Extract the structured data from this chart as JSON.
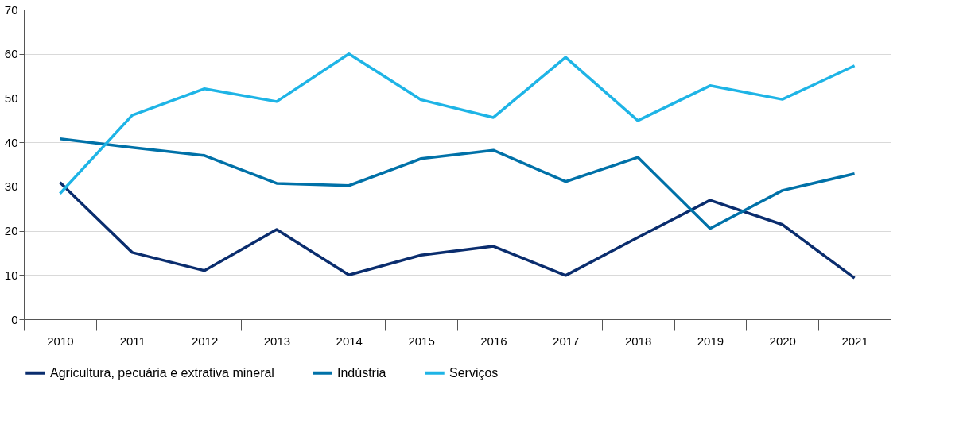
{
  "chart_data": {
    "type": "line",
    "categories": [
      "2010",
      "2011",
      "2012",
      "2013",
      "2014",
      "2015",
      "2016",
      "2017",
      "2018",
      "2019",
      "2020",
      "2021"
    ],
    "series": [
      {
        "name": "Agricultura, pecuária e extrativa mineral",
        "color": "#0a2d6e",
        "values": [
          30.9,
          15.1,
          11,
          20.3,
          10,
          14.5,
          16.5,
          9.9,
          18.5,
          26.9,
          21.4,
          9.3
        ]
      },
      {
        "name": "Indústria",
        "color": "#0071a8",
        "values": [
          40.8,
          38.8,
          37,
          30.7,
          30.2,
          36.3,
          38.2,
          31.1,
          36.6,
          20.5,
          29.1,
          32.9
        ]
      },
      {
        "name": "Serviços",
        "color": "#1eb4e6",
        "values": [
          28.4,
          46.1,
          52.1,
          49.2,
          60,
          49.6,
          45.6,
          59.2,
          44.9,
          52.8,
          49.7,
          57.3
        ]
      }
    ],
    "ylim": [
      0,
      70
    ],
    "yticks": [
      0,
      10,
      20,
      30,
      40,
      50,
      60,
      70
    ],
    "grid": "y",
    "legend": "bottom",
    "marker": "none",
    "line_style": "solid"
  }
}
